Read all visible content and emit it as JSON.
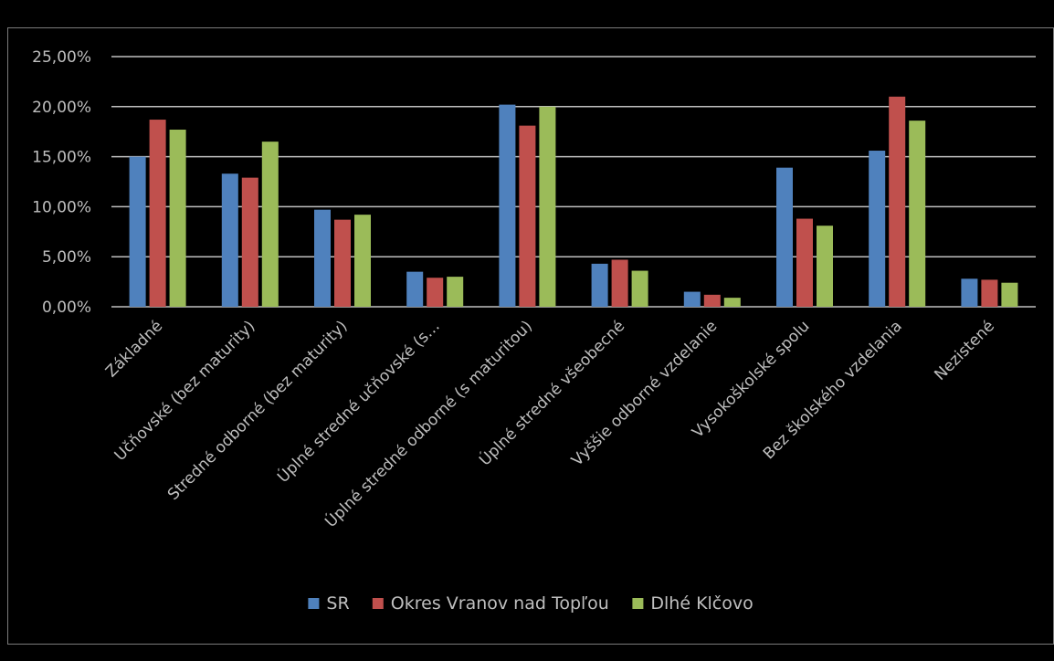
{
  "chart_data": {
    "type": "bar",
    "categories": [
      "Základné",
      "Učňovské (bez maturity)",
      "Stredné odborné (bez maturity)",
      "Úplné stredné učňovské (s…",
      "Úplné stredné odborné (s maturitou)",
      "Úplné stredné všeobecné",
      "Vyššie odborné vzdelanie",
      "Vysokoškolské spolu",
      "Bez školského vzdelania",
      "Nezistené"
    ],
    "series": [
      {
        "name": "SR",
        "color": "#4f81bd",
        "values": [
          15.0,
          13.3,
          9.7,
          3.5,
          20.2,
          4.3,
          1.5,
          13.9,
          15.6,
          2.8
        ]
      },
      {
        "name": "Okres Vranov nad Topľou",
        "color": "#c0504d",
        "values": [
          18.7,
          12.9,
          8.7,
          2.9,
          18.1,
          4.7,
          1.2,
          8.8,
          21.0,
          2.7
        ]
      },
      {
        "name": "Dlhé Klčovo",
        "color": "#9bbb59",
        "values": [
          17.7,
          16.5,
          9.2,
          3.0,
          20.0,
          3.6,
          0.9,
          8.1,
          18.6,
          2.4
        ]
      }
    ],
    "y_ticks": [
      "0,00%",
      "5,00%",
      "10,00%",
      "15,00%",
      "20,00%",
      "25,00%"
    ],
    "ylim": [
      0,
      25
    ],
    "ylabel": "",
    "xlabel": "",
    "title": "",
    "grid": true,
    "legend_position": "bottom",
    "background": "#000000",
    "gridline_color": "#bfbfbf",
    "text_color": "#bfbfbf"
  }
}
